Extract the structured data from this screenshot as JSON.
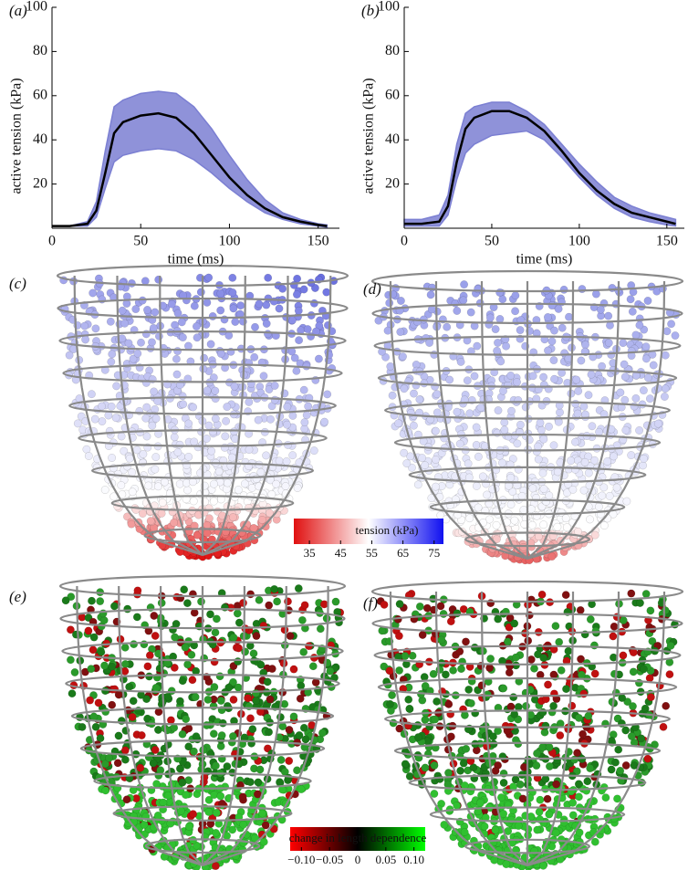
{
  "chart_data": [
    {
      "type": "line",
      "panel": "(a)",
      "xlabel": "time (ms)",
      "ylabel": "active tension (kPa)",
      "x": [
        0,
        10,
        20,
        25,
        30,
        35,
        40,
        50,
        60,
        70,
        80,
        90,
        100,
        110,
        120,
        130,
        140,
        150,
        155
      ],
      "band": {
        "color": "#7b7fd2",
        "upper": [
          1,
          1,
          3,
          12,
          35,
          55,
          58,
          61,
          62,
          61,
          55,
          45,
          33,
          22,
          13,
          7,
          4,
          2,
          1.5
        ],
        "lower": [
          1,
          1,
          1,
          5,
          18,
          30,
          33,
          35,
          36,
          35,
          31,
          25,
          18,
          12,
          7,
          4,
          2,
          1,
          0.5
        ]
      },
      "series": [
        {
          "color": "#000000",
          "values": [
            1,
            1,
            2,
            8,
            25,
            43,
            48,
            51,
            52,
            50,
            43,
            33,
            23,
            15,
            9,
            5,
            3,
            1.5,
            1
          ]
        }
      ],
      "xlim": [
        0,
        162
      ],
      "ylim": [
        0,
        100
      ],
      "xticks": [
        0,
        50,
        100,
        150
      ],
      "yticks": [
        20,
        40,
        60,
        80,
        100
      ]
    },
    {
      "type": "line",
      "panel": "(b)",
      "xlabel": "time (ms)",
      "ylabel": "active tension (kPa)",
      "x": [
        0,
        10,
        20,
        25,
        30,
        35,
        40,
        50,
        60,
        70,
        80,
        90,
        100,
        110,
        120,
        130,
        140,
        150,
        155
      ],
      "band": {
        "color": "#7b7fd2",
        "upper": [
          4,
          4,
          6,
          15,
          38,
          52,
          55,
          57,
          57,
          53,
          47,
          38,
          29,
          21,
          14,
          10,
          7,
          5,
          4
        ],
        "lower": [
          1,
          1,
          1,
          6,
          22,
          34,
          38,
          42,
          43,
          44,
          40,
          32,
          23,
          15,
          9,
          5,
          3,
          1.5,
          1
        ]
      },
      "series": [
        {
          "color": "#000000",
          "values": [
            2,
            2,
            3,
            10,
            30,
            45,
            50,
            53,
            53,
            50,
            44,
            35,
            25,
            17,
            11,
            7,
            5,
            3,
            2
          ]
        }
      ],
      "xlim": [
        0,
        160
      ],
      "ylim": [
        0,
        100
      ],
      "xticks": [
        0,
        50,
        100,
        150
      ],
      "yticks": [
        20,
        40,
        60,
        80,
        100
      ]
    }
  ],
  "panels": [
    {
      "label": "(c)"
    },
    {
      "label": "(d)"
    },
    {
      "label": "(e)"
    },
    {
      "label": "(f)"
    }
  ],
  "colorbars": [
    {
      "label": "tension (kPa)",
      "colors": [
        "#e01010",
        "#ffffff",
        "#1010f0"
      ],
      "lim": [
        30,
        78
      ],
      "ticks": [
        35,
        45,
        55,
        65,
        75
      ]
    },
    {
      "label": "change in length dependence",
      "colors": [
        "#ff0000",
        "#000000",
        "#00ff00"
      ],
      "lim": [
        -0.12,
        0.12
      ],
      "ticks": [
        {
          "value": -0.1,
          "label": "−0.10"
        },
        {
          "value": -0.05,
          "label": "−0.05"
        },
        0,
        0.05,
        {
          "value": 0.1,
          "label": "0.10"
        }
      ]
    }
  ]
}
